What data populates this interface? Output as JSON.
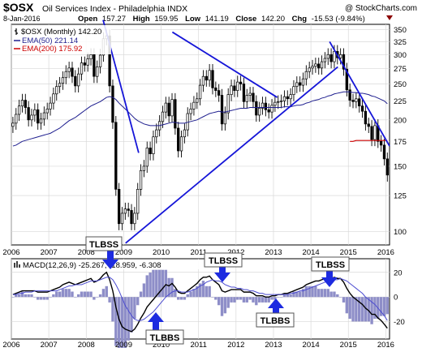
{
  "header": {
    "symbol": "$OSX",
    "name": "Oil Services Index - Philadelphia  INDX",
    "copyright": "@ StockCharts.com",
    "date": "8-Jan-2016",
    "open_label": "Open",
    "open": "157.27",
    "high_label": "High",
    "high": "159.95",
    "low_label": "Low",
    "low": "141.19",
    "close_label": "Close",
    "close": "142.20",
    "chg_label": "Chg",
    "chg": "-15.53 (-9.84%)"
  },
  "legend": {
    "main": "$OSX (Monthly) 142.20",
    "ema50": "EMA(50) 221.14",
    "ema200": "EMA(200) 175.92",
    "macd": "MACD(12,26,9) -25.267, -18.959, -6.308"
  },
  "annotations": [
    {
      "text": "TLBSS"
    },
    {
      "text": "TLBBS"
    },
    {
      "text": "TLBSS"
    },
    {
      "text": "TLBBS"
    },
    {
      "text": "TLBSS"
    }
  ],
  "colors": {
    "price": "#000000",
    "ema50": "#1f1f8f",
    "ema200": "#cc0000",
    "trendline": "#1515d8",
    "histogram": "#8e8ec8",
    "arrow": "#1d2be0"
  },
  "chart_data": [
    {
      "type": "candlestick",
      "title": "$OSX (Monthly) 142.20",
      "x_ticks": [
        "2006",
        "2007",
        "2008",
        "2009",
        "2010",
        "2011",
        "2012",
        "2013",
        "2014",
        "2015",
        "2016"
      ],
      "y_ticks": [
        100,
        125,
        150,
        175,
        200,
        225,
        250,
        275,
        300,
        325,
        350
      ],
      "ylim": [
        92,
        362
      ],
      "log_scale": true,
      "grid": true,
      "legend_position": "top-left",
      "series": [
        {
          "name": "$OSX (Monthly)",
          "close": [
            196,
            207,
            218,
            226,
            216,
            200,
            206,
            213,
            196,
            201,
            209,
            214,
            222,
            235,
            246,
            251,
            260,
            270,
            276,
            262,
            247,
            266,
            285,
            281,
            292,
            300,
            262,
            278,
            299,
            331,
            337,
            247,
            197,
            130,
            105,
            112,
            115,
            114,
            105,
            112,
            130,
            146,
            150,
            168,
            162,
            180,
            188,
            198,
            210,
            222,
            205,
            227,
            190,
            165,
            180,
            188,
            208,
            214,
            223,
            228,
            248,
            262,
            256,
            272,
            244,
            240,
            233,
            195,
            209,
            234,
            247,
            240,
            253,
            250,
            224,
            233,
            236,
            224,
            206,
            215,
            222,
            213,
            210,
            219,
            223,
            224,
            225,
            231,
            228,
            234,
            246,
            252,
            248,
            258,
            270,
            276,
            279,
            283,
            276,
            287,
            293,
            300,
            287,
            306,
            294,
            300,
            274,
            241,
            226,
            224,
            228,
            218,
            211,
            195,
            192,
            177,
            193,
            175,
            171,
            157,
            142
          ]
        },
        {
          "name": "EMA(50)",
          "values": [
            170,
            171,
            173,
            175,
            176,
            177,
            178,
            179,
            180,
            181,
            182,
            183,
            184,
            186,
            188,
            190,
            193,
            196,
            199,
            201,
            203,
            206,
            209,
            212,
            215,
            218,
            220,
            222,
            224,
            227,
            230,
            231,
            230,
            227,
            222,
            218,
            214,
            210,
            206,
            202,
            199,
            197,
            195,
            194,
            193,
            193,
            193,
            193,
            194,
            195,
            196,
            197,
            197,
            196,
            196,
            196,
            197,
            198,
            199,
            200,
            202,
            204,
            206,
            208,
            209,
            210,
            211,
            210,
            210,
            211,
            212,
            213,
            214,
            215,
            215,
            215,
            216,
            216,
            216,
            216,
            216,
            216,
            216,
            216,
            216,
            216,
            216,
            217,
            217,
            217,
            218,
            219,
            219,
            220,
            222,
            223,
            225,
            226,
            227,
            229,
            230,
            232,
            233,
            235,
            236,
            237,
            238,
            238,
            238,
            237,
            237,
            236,
            236,
            235,
            234,
            232,
            231,
            229,
            227,
            225,
            221.14
          ]
        },
        {
          "name": "EMA(200)",
          "values": [
            175,
            175,
            176,
            176,
            176,
            176,
            176,
            176,
            176,
            176,
            176,
            176,
            175.92
          ]
        }
      ]
    },
    {
      "type": "line",
      "title": "MACD(12,26,9) -25.267, -18.959, -6.308",
      "x_ticks": [
        "2006",
        "2007",
        "2008",
        "2009",
        "2010",
        "2011",
        "2012",
        "2013",
        "2014",
        "2015",
        "2016"
      ],
      "y_ticks": [
        -20,
        0,
        20
      ],
      "ylim": [
        -34,
        31
      ],
      "grid": true,
      "series": [
        {
          "name": "MACD",
          "values": [
            2,
            3,
            4,
            5,
            5,
            5,
            5,
            5,
            4,
            4,
            4,
            4,
            5,
            6,
            7,
            8,
            10,
            11,
            12,
            11,
            10,
            11,
            12,
            13,
            14,
            15,
            12,
            13,
            15,
            18,
            20,
            14,
            5,
            -8,
            -18,
            -24,
            -26,
            -27,
            -28,
            -26,
            -22,
            -17,
            -13,
            -8,
            -5,
            -2,
            1,
            4,
            7,
            10,
            9,
            11,
            8,
            4,
            3,
            3,
            5,
            7,
            9,
            11,
            14,
            16,
            16,
            17,
            14,
            12,
            10,
            5,
            4,
            5,
            6,
            6,
            6,
            6,
            4,
            4,
            4,
            3,
            1,
            1,
            1,
            0,
            0,
            1,
            1,
            2,
            2,
            3,
            3,
            4,
            5,
            6,
            7,
            8,
            10,
            11,
            12,
            13,
            13,
            14,
            15,
            16,
            15,
            16,
            15,
            15,
            12,
            7,
            3,
            0,
            -2,
            -4,
            -6,
            -9,
            -11,
            -14,
            -14,
            -17,
            -19,
            -22,
            -25.267
          ]
        },
        {
          "name": "Signal",
          "values": [
            2,
            2,
            3,
            3,
            4,
            4,
            4,
            5,
            5,
            5,
            5,
            5,
            5,
            5,
            5,
            6,
            7,
            8,
            9,
            9,
            10,
            10,
            10,
            11,
            12,
            13,
            13,
            13,
            14,
            15,
            16,
            16,
            14,
            10,
            5,
            -1,
            -7,
            -11,
            -15,
            -18,
            -19,
            -19,
            -18,
            -16,
            -14,
            -12,
            -9,
            -6,
            -3,
            0,
            2,
            4,
            5,
            5,
            4,
            4,
            4,
            5,
            6,
            7,
            9,
            10,
            12,
            13,
            14,
            13,
            13,
            12,
            10,
            9,
            8,
            8,
            7,
            7,
            6,
            6,
            5,
            5,
            4,
            3,
            3,
            2,
            2,
            2,
            2,
            2,
            2,
            2,
            2,
            3,
            3,
            4,
            5,
            5,
            6,
            7,
            8,
            9,
            10,
            11,
            12,
            13,
            13,
            14,
            14,
            15,
            14,
            13,
            11,
            9,
            7,
            5,
            3,
            0,
            -2,
            -4,
            -6,
            -9,
            -12,
            -15,
            -18.959
          ]
        }
      ]
    }
  ]
}
